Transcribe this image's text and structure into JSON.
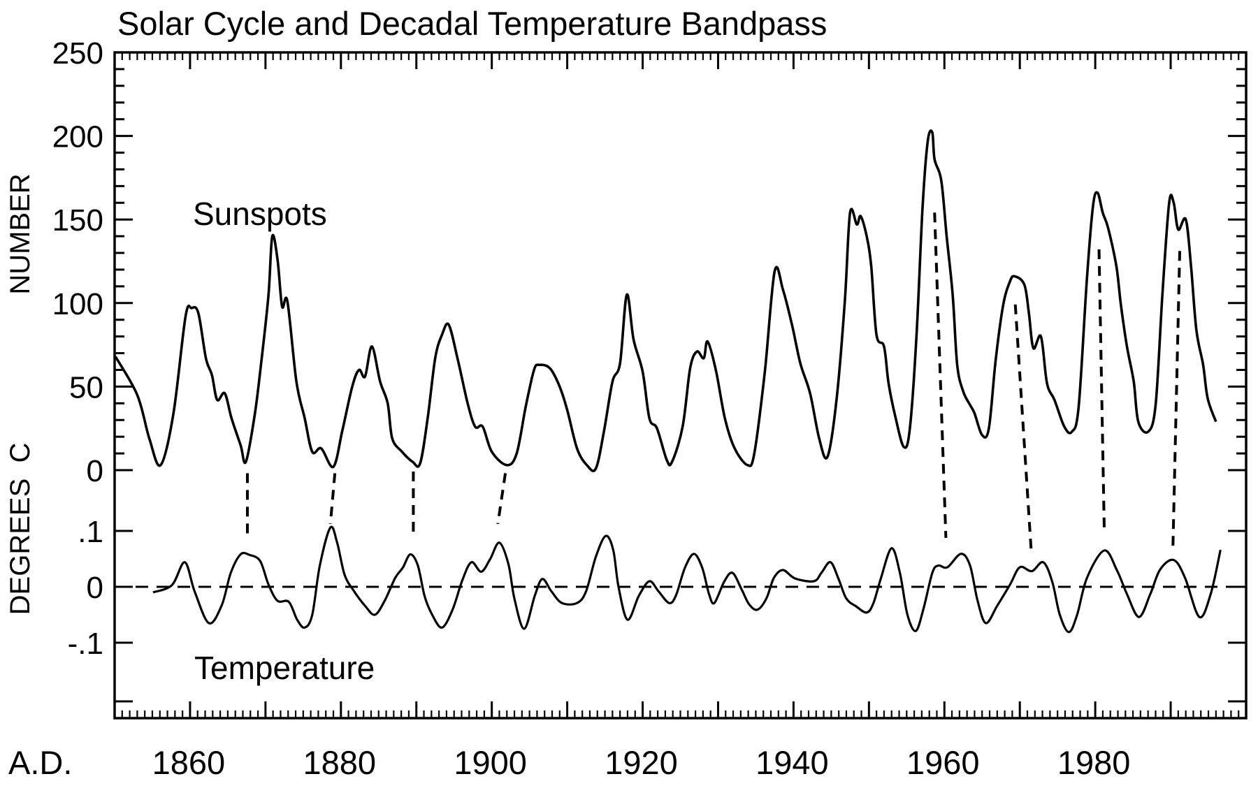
{
  "chart_data": {
    "type": "line",
    "title": "Solar Cycle and Decadal Temperature Bandpass",
    "xlabel": "A.D.",
    "xlim": [
      1850,
      2000
    ],
    "x_ticks": [
      1860,
      1880,
      1900,
      1920,
      1940,
      1960,
      1980
    ],
    "x_tick_labels": [
      "1860",
      "1880",
      "1900",
      "1920",
      "1940",
      "1960",
      "1980"
    ],
    "grid": false,
    "legend": "none",
    "axes": {
      "sunspot": {
        "label": "NUMBER",
        "ylim": [
          0,
          250
        ],
        "ticks": [
          0,
          50,
          100,
          150,
          200,
          250
        ],
        "tick_labels": [
          "0",
          "50",
          "100",
          "150",
          "200",
          "250"
        ]
      },
      "temperature": {
        "label": "DEGREES  C",
        "ylim": [
          -0.235,
          0.21
        ],
        "ticks": [
          0.1,
          0,
          -0.1
        ],
        "tick_labels": [
          ".1",
          "0",
          "-.1"
        ]
      }
    },
    "annotations": [
      {
        "text": "Sunspots",
        "series": "Sunspots",
        "at": [
          1860,
          155
        ]
      },
      {
        "text": "Temperature",
        "series": "Temperature",
        "at": [
          1860,
          -0.14
        ]
      }
    ],
    "series": [
      {
        "name": "Sunspots",
        "axis": "sunspot",
        "style": "solid",
        "x": [
          1850.1,
          1853.0,
          1854.6,
          1856.1,
          1857.8,
          1859.4,
          1860.2,
          1861.1,
          1862.1,
          1862.9,
          1863.6,
          1864.6,
          1865.5,
          1866.7,
          1867.4,
          1868.6,
          1869.5,
          1870.4,
          1870.9,
          1871.6,
          1872.2,
          1872.9,
          1874.1,
          1875.2,
          1876.2,
          1877.4,
          1879.0,
          1880.2,
          1881.5,
          1882.4,
          1883.2,
          1884.1,
          1885.2,
          1886.2,
          1886.8,
          1888.1,
          1889.5,
          1890.5,
          1891.5,
          1892.5,
          1893.4,
          1894.3,
          1895.5,
          1896.8,
          1897.8,
          1898.8,
          1900.0,
          1902.0,
          1903.3,
          1904.5,
          1905.6,
          1906.3,
          1907.7,
          1909.0,
          1910.0,
          1911.3,
          1912.6,
          1913.8,
          1914.9,
          1916.0,
          1917.0,
          1917.9,
          1918.8,
          1920.0,
          1920.9,
          1921.9,
          1923.2,
          1923.9,
          1925.3,
          1926.3,
          1927.2,
          1928.1,
          1928.6,
          1929.7,
          1930.9,
          1932.2,
          1933.9,
          1934.8,
          1936.2,
          1937.5,
          1938.6,
          1939.8,
          1940.9,
          1942.2,
          1943.4,
          1944.5,
          1945.7,
          1946.8,
          1947.5,
          1948.4,
          1948.9,
          1949.7,
          1950.3,
          1951.0,
          1952.0,
          1952.6,
          1953.5,
          1954.6,
          1955.4,
          1956.3,
          1957.1,
          1957.8,
          1958.4,
          1958.7,
          1959.6,
          1960.3,
          1961.1,
          1961.7,
          1962.5,
          1963.4,
          1964.0,
          1965.0,
          1965.9,
          1966.8,
          1967.8,
          1968.7,
          1969.3,
          1970.6,
          1971.2,
          1971.8,
          1972.8,
          1973.6,
          1974.6,
          1975.9,
          1976.9,
          1977.8,
          1978.9,
          1979.7,
          1980.3,
          1981.0,
          1981.7,
          1982.8,
          1983.4,
          1984.2,
          1985.1,
          1985.7,
          1987.0,
          1988.0,
          1988.9,
          1989.8,
          1990.4,
          1991.0,
          1992.0,
          1992.7,
          1993.4,
          1994.3,
          1994.9,
          1996.0
        ],
        "values": [
          68,
          45,
          19,
          3,
          34,
          92,
          97,
          94,
          67,
          57,
          42,
          46,
          31,
          15,
          5,
          34,
          67,
          105,
          140,
          126,
          98,
          101,
          53,
          31,
          11,
          13,
          2,
          24,
          50,
          60,
          56,
          74,
          53,
          40,
          19,
          11,
          5,
          4,
          31,
          67,
          81,
          87,
          66,
          40,
          26,
          26,
          11,
          3,
          10,
          38,
          60,
          63,
          61,
          50,
          36,
          13,
          3,
          1,
          24,
          53,
          64,
          105,
          78,
          59,
          31,
          25,
          6,
          5,
          26,
          61,
          71,
          67,
          77,
          60,
          31,
          13,
          3,
          10,
          59,
          119,
          108,
          87,
          64,
          46,
          19,
          8,
          42,
          101,
          154,
          147,
          152,
          140,
          122,
          81,
          74,
          52,
          32,
          14,
          24,
          80,
          157,
          197,
          202,
          186,
          173,
          140,
          105,
          63,
          47,
          39,
          34,
          21,
          25,
          66,
          99,
          113,
          116,
          111,
          94,
          73,
          80,
          52,
          42,
          26,
          23,
          38,
          115,
          158,
          166,
          154,
          145,
          122,
          99,
          74,
          53,
          29,
          23,
          39,
          105,
          160,
          160,
          144,
          150,
          122,
          84,
          63,
          43,
          29
        ]
      },
      {
        "name": "Temperature",
        "axis": "temperature",
        "style": "solid",
        "x": [
          1855.1,
          1857.6,
          1859.3,
          1860.6,
          1862.5,
          1864.2,
          1865.4,
          1866.7,
          1867.9,
          1869.3,
          1870.4,
          1871.6,
          1873.1,
          1874.2,
          1875.2,
          1876.2,
          1877.2,
          1878.6,
          1879.5,
          1880.5,
          1881.8,
          1883.2,
          1884.5,
          1885.8,
          1887.2,
          1888.2,
          1889.2,
          1890.2,
          1891.1,
          1892.1,
          1893.4,
          1894.8,
          1896.1,
          1897.3,
          1898.6,
          1899.8,
          1901.0,
          1902.2,
          1903.0,
          1904.3,
          1905.7,
          1906.7,
          1907.9,
          1909.3,
          1911.3,
          1912.5,
          1913.8,
          1915.1,
          1916.1,
          1916.8,
          1918.0,
          1919.5,
          1920.9,
          1922.1,
          1923.5,
          1924.4,
          1925.6,
          1926.8,
          1927.9,
          1928.8,
          1929.5,
          1930.8,
          1931.9,
          1933.1,
          1934.1,
          1935.2,
          1936.4,
          1937.4,
          1938.6,
          1940.2,
          1942.7,
          1943.7,
          1944.9,
          1946.0,
          1947.0,
          1948.3,
          1949.7,
          1950.6,
          1951.6,
          1953.0,
          1954.1,
          1955.1,
          1956.2,
          1957.2,
          1958.4,
          1959.2,
          1960.4,
          1962.2,
          1963.4,
          1964.4,
          1965.5,
          1967.0,
          1968.7,
          1970.0,
          1971.6,
          1973.1,
          1974.3,
          1975.3,
          1976.5,
          1977.6,
          1978.9,
          1981.2,
          1982.9,
          1984.2,
          1985.8,
          1987.3,
          1988.6,
          1990.4,
          1991.9,
          1993.8,
          1995.3,
          1996.6
        ],
        "values": [
          -0.01,
          0.003,
          0.044,
          -0.008,
          -0.065,
          -0.033,
          0.025,
          0.058,
          0.057,
          0.046,
          0.004,
          -0.025,
          -0.027,
          -0.059,
          -0.073,
          -0.05,
          0.038,
          0.106,
          0.079,
          0.021,
          -0.009,
          -0.034,
          -0.05,
          -0.025,
          0.016,
          0.034,
          0.058,
          0.038,
          -0.017,
          -0.05,
          -0.073,
          -0.041,
          0.012,
          0.044,
          0.027,
          0.05,
          0.079,
          0.041,
          -0.021,
          -0.075,
          -0.016,
          0.014,
          -0.008,
          -0.029,
          -0.029,
          -0.008,
          0.054,
          0.091,
          0.066,
          0.0,
          -0.059,
          -0.016,
          0.01,
          -0.008,
          -0.029,
          -0.016,
          0.034,
          0.059,
          0.034,
          -0.013,
          -0.029,
          0.009,
          0.025,
          -0.004,
          -0.031,
          -0.041,
          -0.021,
          0.016,
          0.03,
          0.015,
          0.01,
          0.025,
          0.044,
          0.013,
          -0.021,
          -0.035,
          -0.046,
          -0.029,
          0.016,
          0.069,
          0.025,
          -0.05,
          -0.079,
          -0.041,
          0.025,
          0.038,
          0.035,
          0.059,
          0.038,
          -0.025,
          -0.065,
          -0.034,
          0.004,
          0.035,
          0.028,
          0.044,
          0.009,
          -0.05,
          -0.081,
          -0.05,
          0.016,
          0.065,
          0.029,
          -0.013,
          -0.054,
          -0.013,
          0.031,
          0.048,
          0.016,
          -0.054,
          -0.013,
          0.066
        ]
      },
      {
        "name": "Zero line",
        "axis": "temperature",
        "style": "dashed",
        "x": [
          1850,
          2000
        ],
        "values": [
          0,
          0
        ]
      }
    ],
    "connectors": [
      {
        "from": {
          "year": 1867.6,
          "sunspots": 4
        },
        "to": {
          "year": 1867.6,
          "temperature": 0.078
        }
      },
      {
        "from": {
          "year": 1879.2,
          "sunspots": 4
        },
        "to": {
          "year": 1878.6,
          "temperature": 0.1
        }
      },
      {
        "from": {
          "year": 1889.6,
          "sunspots": 5
        },
        "to": {
          "year": 1889.6,
          "temperature": 0.084
        }
      },
      {
        "from": {
          "year": 1901.8,
          "sunspots": 4
        },
        "to": {
          "year": 1900.8,
          "temperature": 0.1
        }
      },
      {
        "from": {
          "year": 1958.7,
          "sunspots": 160
        },
        "to": {
          "year": 1960.2,
          "temperature": 0.075
        }
      },
      {
        "from": {
          "year": 1969.4,
          "sunspots": 105
        },
        "to": {
          "year": 1971.5,
          "temperature": 0.054
        }
      },
      {
        "from": {
          "year": 1980.5,
          "sunspots": 138
        },
        "to": {
          "year": 1981.2,
          "temperature": 0.085
        }
      },
      {
        "from": {
          "year": 1991.2,
          "sunspots": 137
        },
        "to": {
          "year": 1990.3,
          "temperature": 0.06
        }
      }
    ]
  }
}
